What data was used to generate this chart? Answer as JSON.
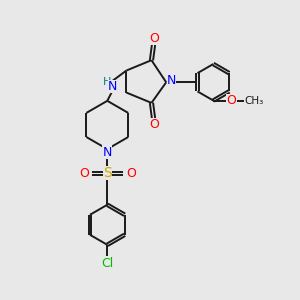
{
  "bg_color": "#e8e8e8",
  "colors": {
    "C": "#1a1a1a",
    "N": "#0000ff",
    "O": "#ff0000",
    "S": "#ccaa00",
    "Cl": "#00bb00",
    "H": "#008080"
  }
}
